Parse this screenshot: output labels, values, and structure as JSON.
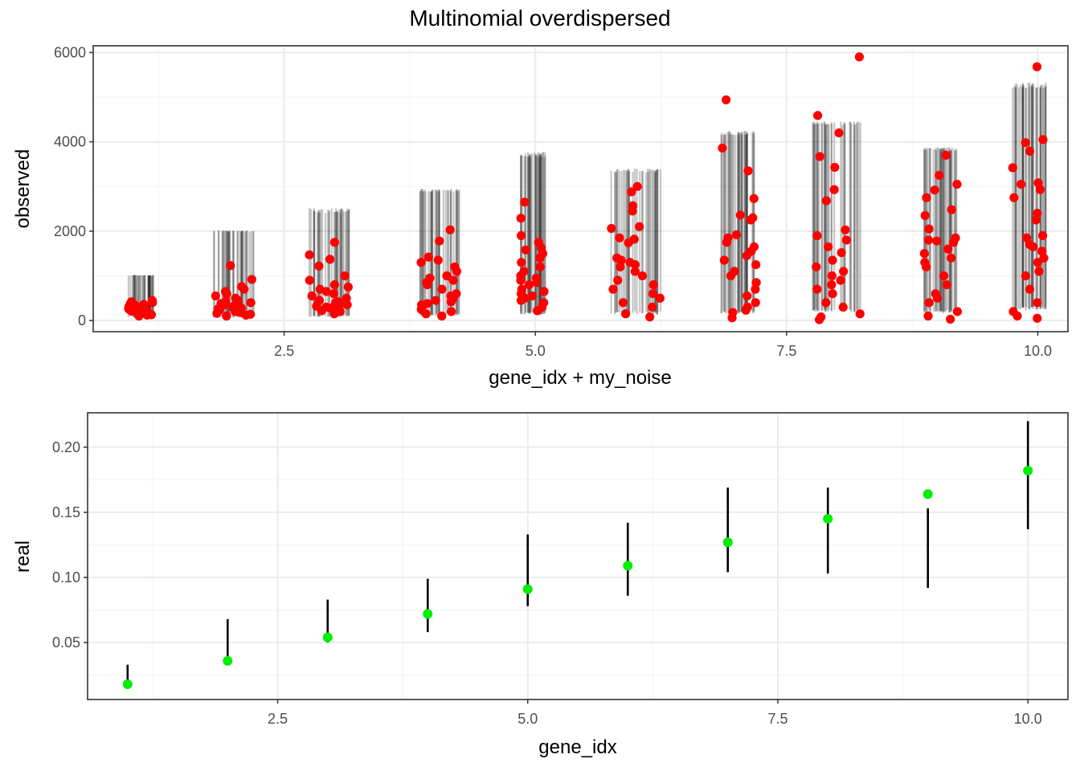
{
  "title": "Multinomial overdispersed",
  "colors": {
    "points_top": "#ff0000",
    "points_bottom": "#00ee00",
    "lines": "#000000",
    "grid_major": "#ebebeb",
    "grid_minor": "#f5f5f5",
    "panel_border": "#333333"
  },
  "chart_data": [
    {
      "type": "scatter",
      "xlabel": "gene_idx + my_noise",
      "ylabel": "observed",
      "xlim": [
        0.6,
        10.3
      ],
      "ylim": [
        -250,
        6150
      ],
      "x_ticks": [
        2.5,
        5.0,
        7.5,
        10.0
      ],
      "x_tick_labels": [
        "2.5",
        "5.0",
        "7.5",
        "10.0"
      ],
      "y_ticks": [
        0,
        2000,
        4000,
        6000
      ],
      "y_tick_labels": [
        "0",
        "2000",
        "4000",
        "6000"
      ],
      "grid": true,
      "series": [
        {
          "kind": "intervals",
          "note_color": "black, semi-transparent",
          "groups": [
            {
              "gene": 1,
              "x_range": [
                0.95,
                1.2
              ],
              "lows": [
                60,
                80,
                100
              ],
              "highs": [
                1000,
                1010,
                1020
              ]
            },
            {
              "gene": 2,
              "x_range": [
                1.8,
                2.2
              ],
              "lows": [
                60,
                80,
                100
              ],
              "highs": [
                1980,
                2000,
                2020
              ]
            },
            {
              "gene": 3,
              "x_range": [
                2.75,
                3.15
              ],
              "lows": [
                80,
                100,
                120
              ],
              "highs": [
                2400,
                2470,
                2520
              ]
            },
            {
              "gene": 4,
              "x_range": [
                3.85,
                4.25
              ],
              "lows": [
                100,
                130,
                160
              ],
              "highs": [
                2880,
                2930,
                2950
              ]
            },
            {
              "gene": 5,
              "x_range": [
                4.85,
                5.1
              ],
              "lows": [
                130,
                160,
                190
              ],
              "highs": [
                3650,
                3720,
                3780
              ]
            },
            {
              "gene": 6,
              "x_range": [
                5.75,
                6.25
              ],
              "lows": [
                130,
                170,
                210
              ],
              "highs": [
                3300,
                3350,
                3400
              ]
            },
            {
              "gene": 7,
              "x_range": [
                6.85,
                7.2
              ],
              "lows": [
                160,
                190,
                220
              ],
              "highs": [
                4150,
                4200,
                4250
              ]
            },
            {
              "gene": 8,
              "x_range": [
                7.75,
                8.25
              ],
              "lows": [
                180,
                220,
                260
              ],
              "highs": [
                4380,
                4420,
                4460
              ]
            },
            {
              "gene": 9,
              "x_range": [
                8.85,
                9.2
              ],
              "lows": [
                160,
                200,
                240
              ],
              "highs": [
                3800,
                3850,
                3880
              ]
            },
            {
              "gene": 10,
              "x_range": [
                9.75,
                10.1
              ],
              "lows": [
                220,
                270,
                310
              ],
              "highs": [
                5200,
                5280,
                5330
              ]
            }
          ]
        },
        {
          "kind": "points",
          "groups": [
            {
              "gene": 1,
              "x_range": [
                0.95,
                1.2
              ],
              "values": [
                150,
                200,
                250,
                300,
                350,
                400,
                450,
                120,
                180,
                230,
                280,
                330,
                380,
                420,
                100,
                160,
                210,
                260,
                310,
                360,
                130,
                170,
                220,
                270,
                320
              ]
            },
            {
              "gene": 2,
              "x_range": [
                1.8,
                2.2
              ],
              "values": [
                1230,
                920,
                760,
                700,
                650,
                600,
                550,
                500,
                450,
                420,
                400,
                380,
                350,
                330,
                300,
                280,
                260,
                240,
                220,
                200,
                180,
                160,
                140,
                120,
                100
              ]
            },
            {
              "gene": 3,
              "x_range": [
                2.75,
                3.15
              ],
              "values": [
                1750,
                1470,
                1370,
                1220,
                1000,
                900,
                800,
                750,
                700,
                650,
                600,
                550,
                500,
                450,
                420,
                400,
                380,
                350,
                320,
                300,
                280,
                250,
                220,
                200,
                150
              ]
            },
            {
              "gene": 4,
              "x_range": [
                3.85,
                4.25
              ],
              "values": [
                2030,
                1780,
                1420,
                1350,
                1300,
                1200,
                1100,
                1000,
                950,
                900,
                850,
                800,
                700,
                600,
                550,
                500,
                450,
                420,
                380,
                350,
                300,
                250,
                200,
                150,
                100
              ]
            },
            {
              "gene": 5,
              "x_range": [
                4.85,
                5.1
              ],
              "values": [
                2650,
                2290,
                1900,
                1750,
                1630,
                1580,
                1500,
                1400,
                1300,
                1200,
                1100,
                1000,
                950,
                900,
                850,
                800,
                700,
                650,
                600,
                550,
                500,
                450,
                400,
                300,
                220
              ]
            },
            {
              "gene": 6,
              "x_range": [
                5.75,
                6.25
              ],
              "values": [
                3000,
                2880,
                2570,
                2450,
                2100,
                2060,
                1850,
                1820,
                1740,
                1400,
                1350,
                1300,
                1250,
                1200,
                1100,
                1000,
                900,
                800,
                700,
                600,
                500,
                400,
                300,
                150,
                80
              ]
            },
            {
              "gene": 7,
              "x_range": [
                6.85,
                7.2
              ],
              "values": [
                4940,
                3860,
                3350,
                2730,
                2360,
                2300,
                2250,
                1920,
                1850,
                1750,
                1650,
                1550,
                1450,
                1350,
                1250,
                1100,
                1000,
                850,
                700,
                550,
                400,
                300,
                230,
                180,
                60
              ]
            },
            {
              "gene": 8,
              "x_range": [
                7.75,
                8.25
              ],
              "values": [
                5900,
                4590,
                4200,
                3670,
                3430,
                2930,
                2680,
                2030,
                1900,
                1800,
                1650,
                1520,
                1350,
                1200,
                1100,
                1000,
                900,
                800,
                700,
                600,
                400,
                300,
                150,
                80,
                20
              ]
            },
            {
              "gene": 9,
              "x_range": [
                8.85,
                9.2
              ],
              "values": [
                3700,
                3250,
                3050,
                2920,
                2750,
                2480,
                2350,
                2050,
                1850,
                1800,
                1780,
                1750,
                1600,
                1500,
                1400,
                1300,
                1200,
                1000,
                800,
                600,
                500,
                400,
                200,
                100,
                30
              ]
            },
            {
              "gene": 10,
              "x_range": [
                9.75,
                10.1
              ],
              "values": [
                5680,
                4050,
                3980,
                3790,
                3420,
                3080,
                3050,
                2930,
                2750,
                2400,
                2250,
                1900,
                1850,
                1700,
                1650,
                1550,
                1400,
                1300,
                1100,
                1000,
                700,
                400,
                200,
                100,
                50
              ]
            }
          ]
        }
      ]
    },
    {
      "type": "scatter",
      "xlabel": "gene_idx",
      "ylabel": "real",
      "xlim": [
        0.6,
        10.4
      ],
      "ylim": [
        0.0063,
        0.2264
      ],
      "x_ticks": [
        2.5,
        5.0,
        7.5,
        10.0
      ],
      "x_tick_labels": [
        "2.5",
        "5.0",
        "7.5",
        "10.0"
      ],
      "y_ticks": [
        0.05,
        0.1,
        0.15,
        0.2
      ],
      "y_tick_labels": [
        "0.05",
        "0.10",
        "0.15",
        "0.20"
      ],
      "grid": true,
      "x": [
        1,
        2,
        3,
        4,
        5,
        6,
        7,
        8,
        9,
        10
      ],
      "y": [
        0.018,
        0.036,
        0.054,
        0.072,
        0.091,
        0.109,
        0.127,
        0.145,
        0.164,
        0.182
      ],
      "error_low": [
        0.017,
        0.035,
        0.05,
        0.058,
        0.078,
        0.086,
        0.104,
        0.103,
        0.092,
        0.137
      ],
      "error_high": [
        0.033,
        0.068,
        0.083,
        0.099,
        0.133,
        0.142,
        0.169,
        0.169,
        0.153,
        0.22
      ]
    }
  ]
}
